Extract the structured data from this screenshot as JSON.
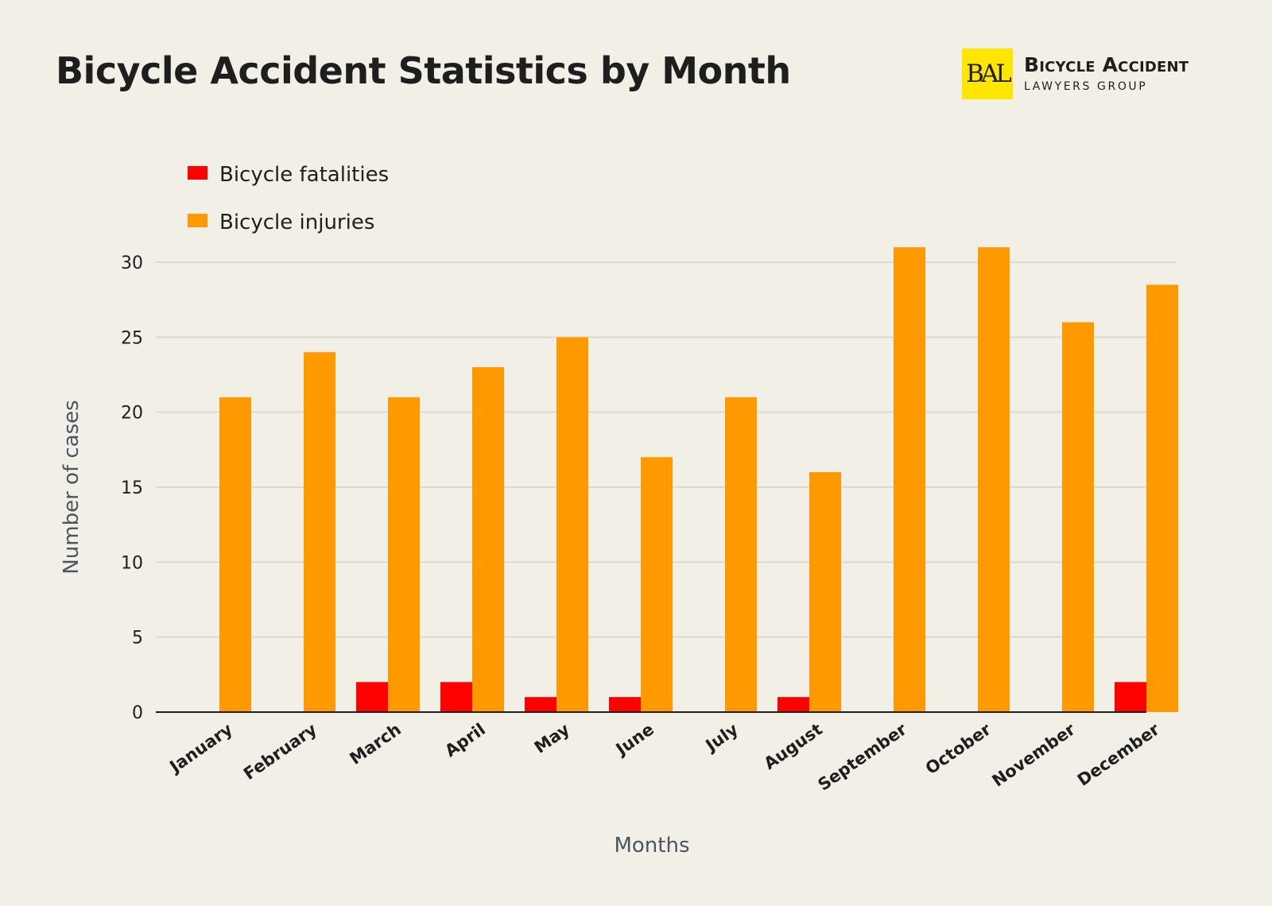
{
  "header": {
    "title": "Bicycle Accident Statistics by Month"
  },
  "logo": {
    "mark": "BAL",
    "line1": "Bicycle Accident",
    "line2": "LAWYERS GROUP"
  },
  "colors": {
    "fatalities": "#ff0000",
    "injuries": "#ff9900",
    "background": "#f2f0e6"
  },
  "chart_data": {
    "type": "bar",
    "title": "Bicycle Accident Statistics by Month",
    "xlabel": "Months",
    "ylabel": "Number of cases",
    "ylim": [
      0,
      30
    ],
    "yticks": [
      0,
      5,
      10,
      15,
      20,
      25,
      30
    ],
    "grid": true,
    "legend_position": "top-left",
    "categories": [
      "January",
      "February",
      "March",
      "April",
      "May",
      "June",
      "July",
      "August",
      "September",
      "October",
      "November",
      "December"
    ],
    "series": [
      {
        "name": "Bicycle fatalities",
        "color": "#ff0000",
        "values": [
          0,
          0,
          2,
          2,
          1,
          1,
          0,
          1,
          0,
          0,
          0,
          2
        ]
      },
      {
        "name": "Bicycle injuries",
        "color": "#ff9900",
        "values": [
          21,
          24,
          21,
          23,
          25,
          17,
          21,
          16,
          31,
          31,
          26,
          28.5
        ]
      }
    ]
  }
}
